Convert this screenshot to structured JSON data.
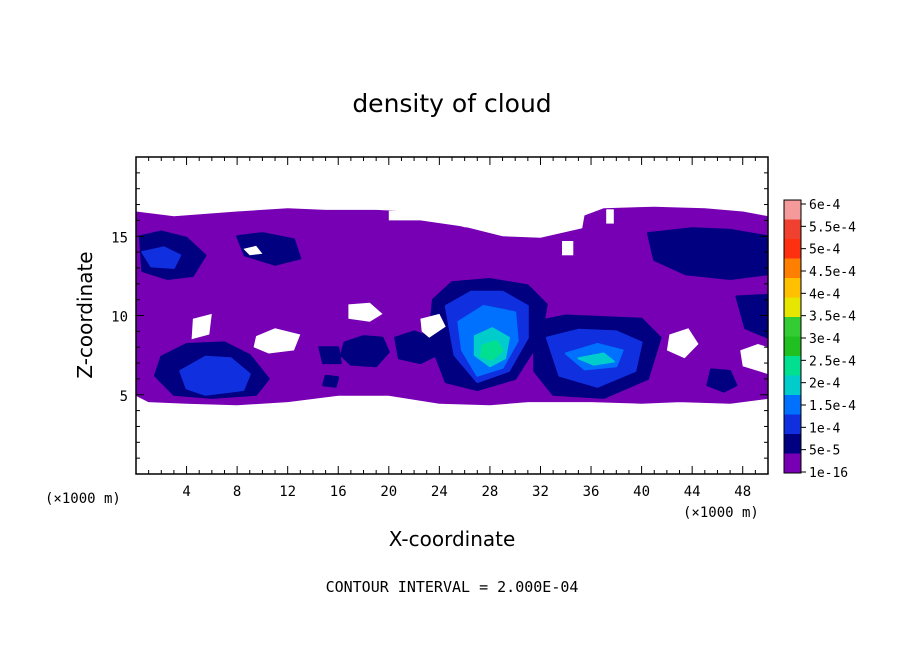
{
  "chart_data": {
    "type": "heatmap",
    "title": "density of cloud",
    "xlabel": "X-coordinate",
    "ylabel": "Z-coordinate",
    "x_unit": "(×1000 m)",
    "y_unit": "(×1000 m)",
    "xlim": [
      0,
      50
    ],
    "ylim": [
      0,
      20
    ],
    "xticks": [
      4,
      8,
      12,
      16,
      20,
      24,
      28,
      32,
      36,
      40,
      44,
      48
    ],
    "yticks": [
      5,
      10,
      15
    ],
    "footnote": "CONTOUR INTERVAL = 2.000E-04",
    "grid": false,
    "legend": "right",
    "colorbar": {
      "labels": [
        "6e-4",
        "5.5e-4",
        "5e-4",
        "4.5e-4",
        "4e-4",
        "3.5e-4",
        "3e-4",
        "2.5e-4",
        "2e-4",
        "1.5e-4",
        "1e-4",
        "5e-5",
        "1e-16"
      ],
      "colors": [
        "#f59a9a",
        "#f04030",
        "#ff3010",
        "#ff8000",
        "#ffc000",
        "#e6e600",
        "#33cc33",
        "#20c020",
        "#00e090",
        "#00cccc",
        "#0070ff",
        "#1030e0",
        "#000080",
        "#7800b4"
      ]
    },
    "regions": [
      {
        "level": 0,
        "x": [
          0,
          3,
          8,
          12,
          15,
          19,
          22,
          26,
          30,
          34,
          37,
          41,
          45,
          48,
          50,
          50,
          47,
          43,
          40,
          36,
          31,
          28,
          24,
          20,
          16,
          12,
          8,
          4,
          1,
          0
        ],
        "y": [
          16.5,
          16.2,
          16.5,
          16.7,
          16.6,
          16.6,
          16.5,
          15.5,
          15.4,
          15.8,
          16.7,
          16.8,
          16.7,
          16.5,
          16.2,
          4.8,
          4.5,
          4.6,
          4.5,
          4.6,
          4.6,
          4.4,
          4.5,
          5,
          5,
          4.6,
          4.4,
          4.5,
          4.6,
          5
        ]
      },
      {
        "level": 1,
        "x": [
          0.3,
          2,
          4,
          5.5,
          4.5,
          2.5,
          0.5
        ],
        "y": [
          15,
          15.3,
          14.9,
          13.8,
          12.5,
          12.3,
          12.8
        ]
      },
      {
        "level": 2,
        "x": [
          0.5,
          2.2,
          3.5,
          3,
          1.2
        ],
        "y": [
          14,
          14.3,
          13.8,
          13,
          13.1
        ]
      },
      {
        "level": 1,
        "x": [
          8,
          10,
          12.5,
          13,
          11,
          8.6
        ],
        "y": [
          15,
          15.2,
          14.8,
          13.6,
          13.2,
          13.8
        ]
      },
      {
        "level": 1,
        "x": [
          40.5,
          44,
          47,
          50,
          50,
          47,
          43.5,
          41
        ],
        "y": [
          15.2,
          15.5,
          15.4,
          15,
          12.6,
          12.3,
          12.6,
          13.5
        ]
      },
      {
        "level": 1,
        "x": [
          47.5,
          50,
          50,
          48.2
        ],
        "y": [
          11.2,
          11.3,
          8.6,
          9.2
        ]
      },
      {
        "level": 1,
        "x": [
          2,
          4,
          7,
          9,
          10.5,
          9.5,
          6,
          3,
          1.5
        ],
        "y": [
          7.4,
          8.2,
          8.3,
          7.5,
          6,
          5,
          4.8,
          5,
          6.2
        ]
      },
      {
        "level": 2,
        "x": [
          3.5,
          5.5,
          7.5,
          9,
          8.5,
          5.5,
          4
        ],
        "y": [
          6.5,
          7.4,
          7.3,
          6.3,
          5.3,
          5,
          5.4
        ]
      },
      {
        "level": 1,
        "x": [
          14.5,
          16,
          16.2,
          14.8
        ],
        "y": [
          8,
          8,
          7,
          7
        ]
      },
      {
        "level": 1,
        "x": [
          16.5,
          18,
          19.5,
          20,
          19,
          17,
          16.2
        ],
        "y": [
          8.3,
          8.7,
          8.6,
          7.7,
          6.8,
          6.9,
          7.5
        ]
      },
      {
        "level": 1,
        "x": [
          20.5,
          22,
          23.5,
          23.8,
          22.5,
          20.8
        ],
        "y": [
          8.6,
          9,
          8.6,
          7.5,
          7,
          7.3
        ]
      },
      {
        "level": 1,
        "x": [
          15,
          16,
          15.8,
          14.8
        ],
        "y": [
          6.2,
          6.1,
          5.5,
          5.6
        ]
      },
      {
        "level": 1,
        "x": [
          23.5,
          25,
          28,
          31,
          32.5,
          32,
          30,
          27,
          24.5,
          23.2
        ],
        "y": [
          11,
          12.1,
          12.3,
          11.9,
          10.7,
          8.5,
          6,
          5.3,
          5.8,
          8.5
        ]
      },
      {
        "level": 2,
        "x": [
          24.5,
          26.5,
          29,
          31,
          31,
          29.5,
          27,
          25.2
        ],
        "y": [
          10.6,
          11.5,
          11.5,
          10.6,
          8.6,
          6.5,
          5.8,
          7.5
        ]
      },
      {
        "level": 3,
        "x": [
          25.5,
          27.5,
          30,
          30.2,
          29,
          27,
          25.8
        ],
        "y": [
          9.6,
          10.6,
          10.2,
          8.4,
          6.7,
          6.2,
          7.8
        ]
      },
      {
        "level": 4,
        "x": [
          26.8,
          28.2,
          29.5,
          29.2,
          28,
          26.8
        ],
        "y": [
          8.7,
          9.2,
          8.6,
          7.3,
          6.8,
          7.5
        ]
      },
      {
        "level": 5,
        "x": [
          27.4,
          28.5,
          29,
          28.2,
          27.3
        ],
        "y": [
          8.1,
          8.4,
          7.8,
          7.2,
          7.4
        ]
      },
      {
        "level": 1,
        "x": [
          31.5,
          34,
          37,
          40,
          41.5,
          40.5,
          37,
          33,
          31.5
        ],
        "y": [
          9.6,
          10,
          9.9,
          9.8,
          8.6,
          6,
          4.8,
          5,
          6.5
        ]
      },
      {
        "level": 2,
        "x": [
          32.5,
          35,
          38,
          40,
          39.5,
          36.5,
          33.5
        ],
        "y": [
          8.6,
          9.1,
          9,
          8.3,
          6.5,
          5.5,
          6.2
        ]
      },
      {
        "level": 3,
        "x": [
          34,
          36.5,
          38.5,
          38,
          35.5
        ],
        "y": [
          7.6,
          8.2,
          7.8,
          6.8,
          6.6
        ]
      },
      {
        "level": 4,
        "x": [
          35,
          37,
          37.8,
          36.2
        ],
        "y": [
          7.3,
          7.6,
          7.1,
          6.9
        ]
      },
      {
        "level": 1,
        "x": [
          45.5,
          47,
          47.5,
          46.5,
          45.2
        ],
        "y": [
          6.6,
          6.5,
          5.6,
          5.2,
          5.6
        ]
      },
      {
        "level": -1,
        "x": [
          4.5,
          6,
          5.8,
          4.4
        ],
        "y": [
          9.8,
          10.1,
          8.8,
          8.5
        ]
      },
      {
        "level": -1,
        "x": [
          9.5,
          11,
          13,
          12.5,
          10.5,
          9.3
        ],
        "y": [
          8.7,
          9.2,
          8.8,
          7.8,
          7.6,
          8
        ]
      },
      {
        "level": -1,
        "x": [
          16.8,
          18.5,
          19.5,
          18.5,
          16.8
        ],
        "y": [
          10.7,
          10.8,
          10.1,
          9.6,
          9.8
        ]
      },
      {
        "level": -1,
        "x": [
          22.5,
          24,
          24.5,
          23.2,
          22.6
        ],
        "y": [
          9.8,
          10.1,
          9.3,
          8.6,
          9
        ]
      },
      {
        "level": -1,
        "x": [
          20,
          23.5,
          26,
          29.5,
          33,
          35.5,
          35.3,
          32,
          29,
          26,
          22.5,
          20
        ],
        "y": [
          16.6,
          16.7,
          16.6,
          15.7,
          16.6,
          16.4,
          15.5,
          14.9,
          15,
          15.6,
          16,
          16
        ]
      },
      {
        "level": -1,
        "x": [
          33.7,
          34.6,
          34.6,
          33.7
        ],
        "y": [
          14.7,
          14.7,
          13.8,
          13.8
        ]
      },
      {
        "level": -1,
        "x": [
          37.2,
          37.8,
          37.8,
          37.2
        ],
        "y": [
          16.7,
          16.7,
          15.8,
          15.8
        ]
      },
      {
        "level": -1,
        "x": [
          42.2,
          43.7,
          44.5,
          43.4,
          42
        ],
        "y": [
          8.8,
          9.2,
          8.2,
          7.3,
          7.8
        ]
      },
      {
        "level": -1,
        "x": [
          47.8,
          49.2,
          50,
          50,
          48
        ],
        "y": [
          7.8,
          8.2,
          8,
          6.3,
          6.8
        ]
      },
      {
        "level": -1,
        "x": [
          8.5,
          9.5,
          10,
          9
        ],
        "y": [
          14.2,
          14.4,
          13.9,
          13.8
        ]
      }
    ]
  }
}
